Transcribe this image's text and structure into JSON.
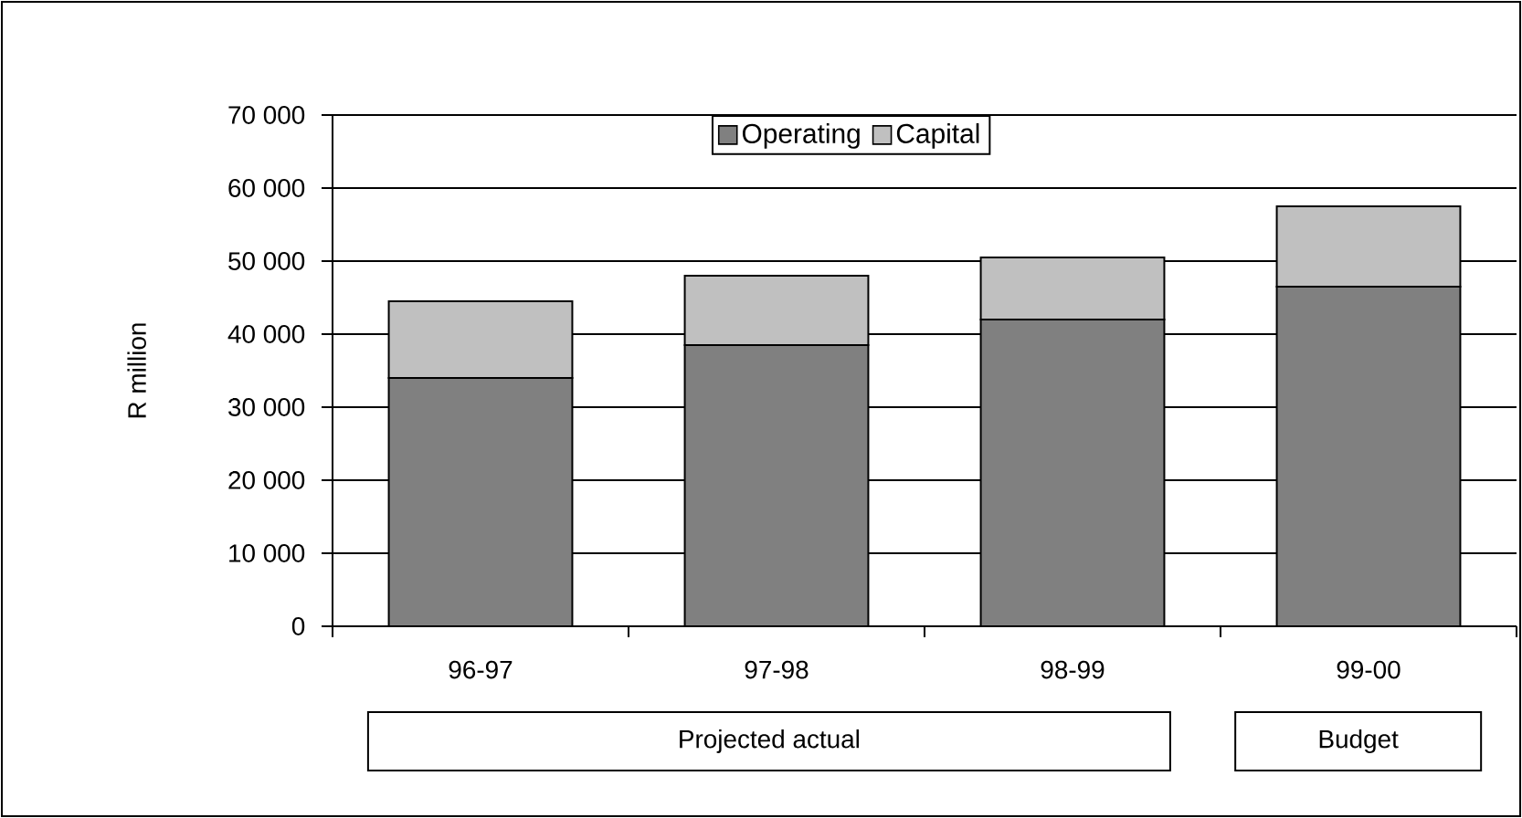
{
  "chart_data": {
    "type": "bar",
    "stacked": true,
    "ylabel": "R million",
    "categories": [
      "96-97",
      "97-98",
      "98-99",
      "99-00"
    ],
    "series": [
      {
        "name": "Operating",
        "color": "#808080",
        "values": [
          34000,
          38500,
          42000,
          46500
        ]
      },
      {
        "name": "Capital",
        "color": "#c0c0c0",
        "values": [
          10500,
          9500,
          8500,
          11000
        ]
      }
    ],
    "ylim": [
      0,
      70000
    ],
    "yticks": [
      {
        "value": 0,
        "label": "0"
      },
      {
        "value": 10000,
        "label": "10 000"
      },
      {
        "value": 20000,
        "label": "20 000"
      },
      {
        "value": 30000,
        "label": "30 000"
      },
      {
        "value": 40000,
        "label": "40 000"
      },
      {
        "value": 50000,
        "label": "50 000"
      },
      {
        "value": 60000,
        "label": "60 000"
      },
      {
        "value": 70000,
        "label": "70 000"
      }
    ],
    "grid": "y",
    "legend": "top",
    "annotations": [
      "Projected actual",
      "Budget"
    ]
  }
}
